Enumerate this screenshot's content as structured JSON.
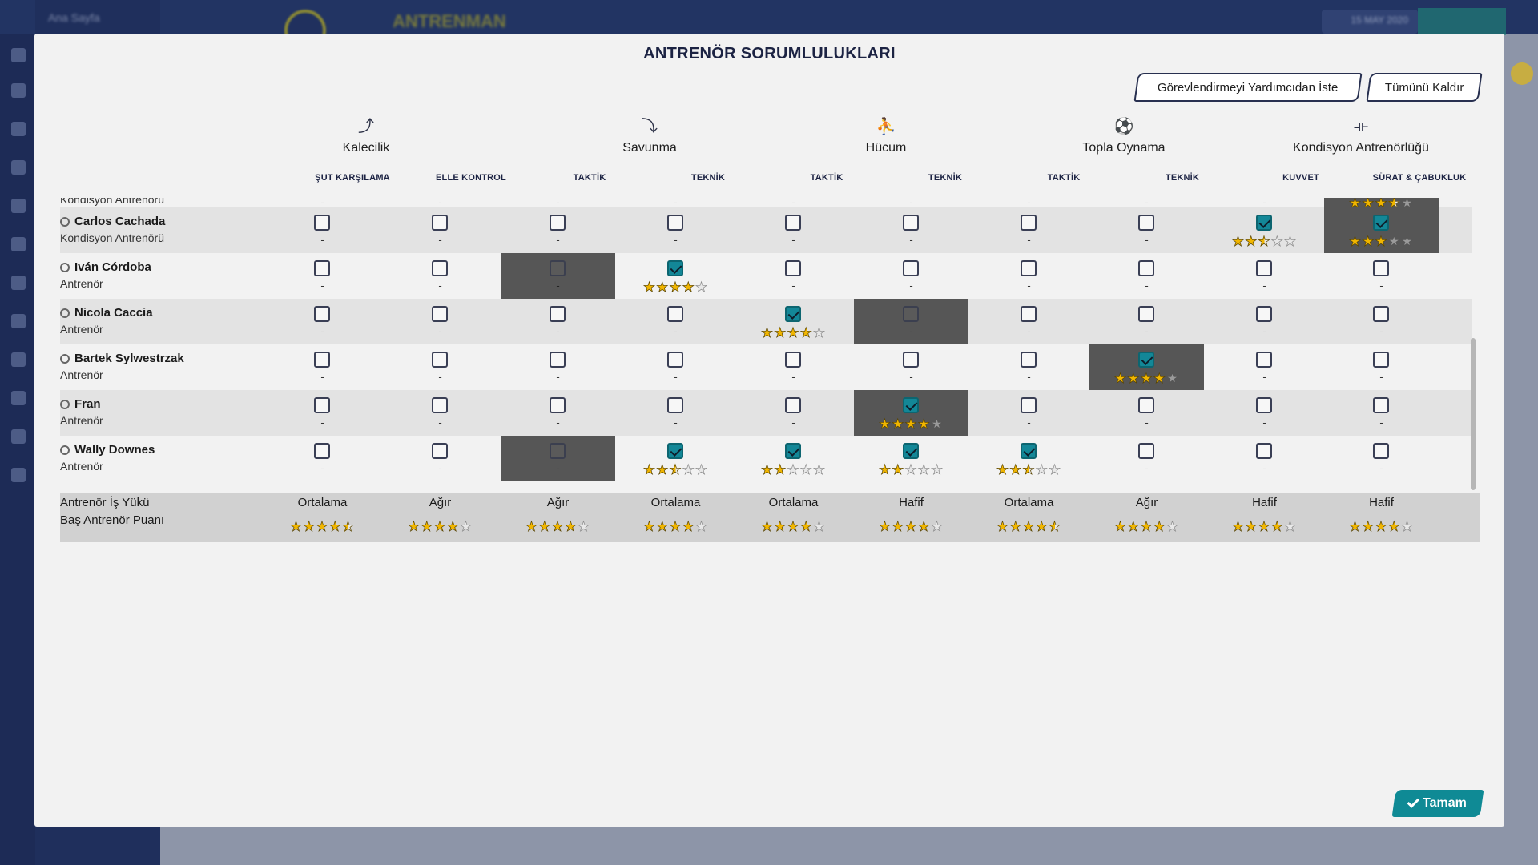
{
  "background": {
    "breadcrumb": "Ana Sayfa",
    "screen_title": "ANTRENMAN",
    "date": "15 MAY 2020"
  },
  "modal": {
    "title": "ANTRENÖR SORUMLULUKLARI",
    "assign_label": "Görevlendirmeyi Yardımcıdan İste",
    "remove_label": "Tümünü Kaldır",
    "ok_label": "Tamam"
  },
  "groups": [
    {
      "label": "Kalecilik",
      "icon": "goalkeeping-icon"
    },
    {
      "label": "Savunma",
      "icon": "defending-icon"
    },
    {
      "label": "Hücum",
      "icon": "attacking-icon"
    },
    {
      "label": "Topla Oynama",
      "icon": "ball-control-icon"
    },
    {
      "label": "Kondisyon Antrenörlüğü",
      "icon": "fitness-icon"
    }
  ],
  "columns": [
    "ŞUT KARŞILAMA",
    "ELLE KONTROL",
    "TAKTİK",
    "TEKNİK",
    "TAKTİK",
    "TEKNİK",
    "TAKTİK",
    "TEKNİK",
    "KUVVET",
    "SÜRAT & ÇABUKLUK"
  ],
  "partial_row": {
    "role": "Kondisyon Antrenörü",
    "cells": [
      "-",
      "-",
      "-",
      "-",
      "-",
      "-",
      "-",
      "-",
      "-",
      null
    ],
    "selected_col": 9,
    "selected_stars": 3.5
  },
  "coaches": [
    {
      "name": "Carlos Cachada",
      "role": "Kondisyon Antrenörü",
      "alt": true,
      "cells": [
        {
          "checked": false
        },
        {
          "checked": false
        },
        {
          "checked": false
        },
        {
          "checked": false
        },
        {
          "checked": false
        },
        {
          "checked": false
        },
        {
          "checked": false
        },
        {
          "checked": false
        },
        {
          "checked": true,
          "stars": 2.5
        },
        {
          "checked": true,
          "stars": 3,
          "selected": true
        }
      ]
    },
    {
      "name": "Iván Córdoba",
      "role": "Antrenör",
      "alt": false,
      "cells": [
        {
          "checked": false
        },
        {
          "checked": false
        },
        {
          "checked": false,
          "selected": true
        },
        {
          "checked": true,
          "stars": 4
        },
        {
          "checked": false
        },
        {
          "checked": false
        },
        {
          "checked": false
        },
        {
          "checked": false
        },
        {
          "checked": false
        },
        {
          "checked": false
        }
      ]
    },
    {
      "name": "Nicola Caccia",
      "role": "Antrenör",
      "alt": true,
      "cells": [
        {
          "checked": false
        },
        {
          "checked": false
        },
        {
          "checked": false
        },
        {
          "checked": false
        },
        {
          "checked": true,
          "stars": 4
        },
        {
          "checked": false,
          "selected": true
        },
        {
          "checked": false
        },
        {
          "checked": false
        },
        {
          "checked": false
        },
        {
          "checked": false
        }
      ]
    },
    {
      "name": "Bartek Sylwestrzak",
      "role": "Antrenör",
      "alt": false,
      "cells": [
        {
          "checked": false
        },
        {
          "checked": false
        },
        {
          "checked": false
        },
        {
          "checked": false
        },
        {
          "checked": false
        },
        {
          "checked": false
        },
        {
          "checked": false
        },
        {
          "checked": true,
          "stars": 4,
          "selected": true
        },
        {
          "checked": false
        },
        {
          "checked": false
        }
      ]
    },
    {
      "name": "Fran",
      "role": "Antrenör",
      "alt": true,
      "cells": [
        {
          "checked": false
        },
        {
          "checked": false
        },
        {
          "checked": false
        },
        {
          "checked": false
        },
        {
          "checked": false
        },
        {
          "checked": true,
          "stars": 4,
          "selected": true
        },
        {
          "checked": false
        },
        {
          "checked": false
        },
        {
          "checked": false
        },
        {
          "checked": false
        }
      ]
    },
    {
      "name": "Wally Downes",
      "role": "Antrenör",
      "alt": false,
      "cells": [
        {
          "checked": false
        },
        {
          "checked": false
        },
        {
          "checked": false,
          "selected": true
        },
        {
          "checked": true,
          "stars": 2.5
        },
        {
          "checked": true,
          "stars": 2
        },
        {
          "checked": true,
          "stars": 2
        },
        {
          "checked": true,
          "stars": 2.5
        },
        {
          "checked": false
        },
        {
          "checked": false
        },
        {
          "checked": false
        }
      ]
    }
  ],
  "summary": {
    "workload_label": "Antrenör İş Yükü",
    "rating_label": "Baş Antrenör Puanı",
    "workload": [
      "Ortalama",
      "Ağır",
      "Ağır",
      "Ortalama",
      "Ortalama",
      "Hafif",
      "Ortalama",
      "Ağır",
      "Hafif",
      "Hafif"
    ],
    "ratings": [
      4.5,
      4,
      4,
      4,
      4,
      4,
      4.5,
      4,
      4,
      4
    ]
  },
  "colors": {
    "accent": "#138797",
    "selected_cell": "#565656",
    "star": "#f1b600"
  }
}
